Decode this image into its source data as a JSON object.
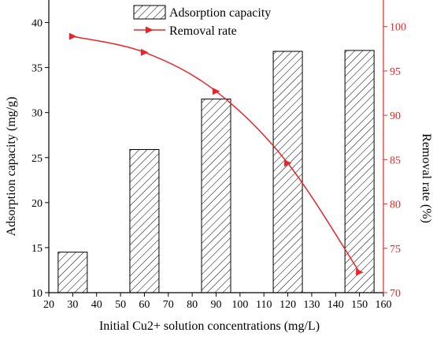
{
  "chart_data": {
    "type": "bar",
    "x_axis": {
      "label": "Initial Cu2+ solution concentrations (mg/L)",
      "range": [
        20,
        160
      ],
      "ticks": [
        20,
        30,
        40,
        50,
        60,
        70,
        80,
        90,
        100,
        110,
        120,
        130,
        140,
        150,
        160
      ]
    },
    "y_left": {
      "label": "Adsorption capacity (mg/g)",
      "range": [
        10,
        42.5
      ],
      "ticks": [
        10,
        15,
        20,
        25,
        30,
        35,
        40
      ]
    },
    "y_right": {
      "label": "Removal rate (%)",
      "range": [
        70,
        103
      ],
      "ticks": [
        70,
        75,
        80,
        85,
        90,
        95,
        100
      ],
      "color": "#e8262a"
    },
    "bar_series": {
      "name": "Adsorption capacity",
      "pattern": "diagonal-hatch",
      "x": [
        30,
        60,
        90,
        120,
        150
      ],
      "values": [
        14.5,
        25.9,
        31.5,
        36.8,
        36.9
      ]
    },
    "line_series": {
      "name": "Removal rate",
      "color": "#e8262a",
      "marker": "right-triangle",
      "x": [
        30,
        60,
        90,
        120,
        150
      ],
      "values": [
        98.9,
        97.1,
        92.7,
        84.6,
        72.3
      ]
    },
    "legend": {
      "placement": "top-center",
      "items": [
        "Adsorption capacity",
        "Removal rate"
      ]
    },
    "grid": false
  }
}
